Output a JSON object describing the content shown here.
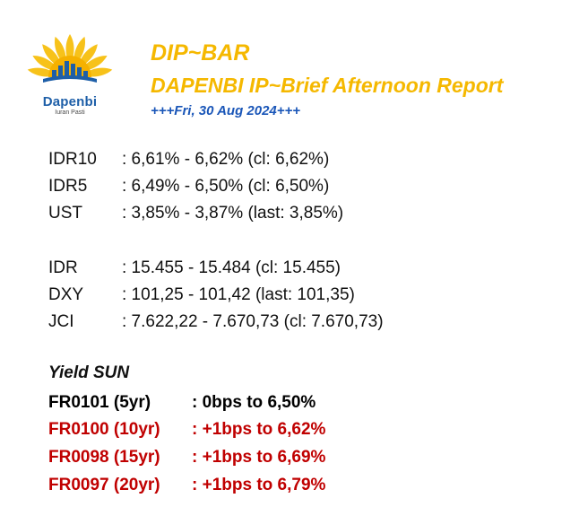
{
  "logo": {
    "name": "Dapenbi",
    "tagline": "Iuran Pasti",
    "icon": "sun-building-logo-icon",
    "colors": {
      "sun": "#f5b100",
      "ray": "#f7c21a",
      "building": "#1e5fa8"
    }
  },
  "header": {
    "title": "DIP~BAR",
    "subtitle": "DAPENBI IP~Brief Afternoon Report",
    "date": "+++Fri, 30 Aug 2024+++"
  },
  "rates": [
    {
      "label": "IDR10",
      "value": ": 6,61% - 6,62% (cl: 6,62%)"
    },
    {
      "label": "IDR5",
      "value": ": 6,49% - 6,50% (cl: 6,50%)"
    },
    {
      "label": "UST",
      "value": ": 3,85% - 3,87% (last: 3,85%)"
    }
  ],
  "markets": [
    {
      "label": "IDR",
      "value": ": 15.455 - 15.484 (cl: 15.455)"
    },
    {
      "label": "DXY",
      "value": ": 101,25 - 101,42 (last: 101,35)"
    },
    {
      "label": "JCI",
      "value": ": 7.622,22 - 7.670,73 (cl: 7.670,73)"
    }
  ],
  "yield_sun": {
    "title": "Yield SUN",
    "items": [
      {
        "label": "FR0101 (5yr)",
        "value": ": 0bps to 6,50%",
        "color": "#000000"
      },
      {
        "label": "FR0100 (10yr)",
        "value": ": +1bps to 6,62%",
        "color": "#c00000"
      },
      {
        "label": "FR0098 (15yr)",
        "value": ": +1bps to 6,69%",
        "color": "#c00000"
      },
      {
        "label": "FR0097 (20yr)",
        "value": ": +1bps to 6,79%",
        "color": "#c00000"
      }
    ]
  }
}
